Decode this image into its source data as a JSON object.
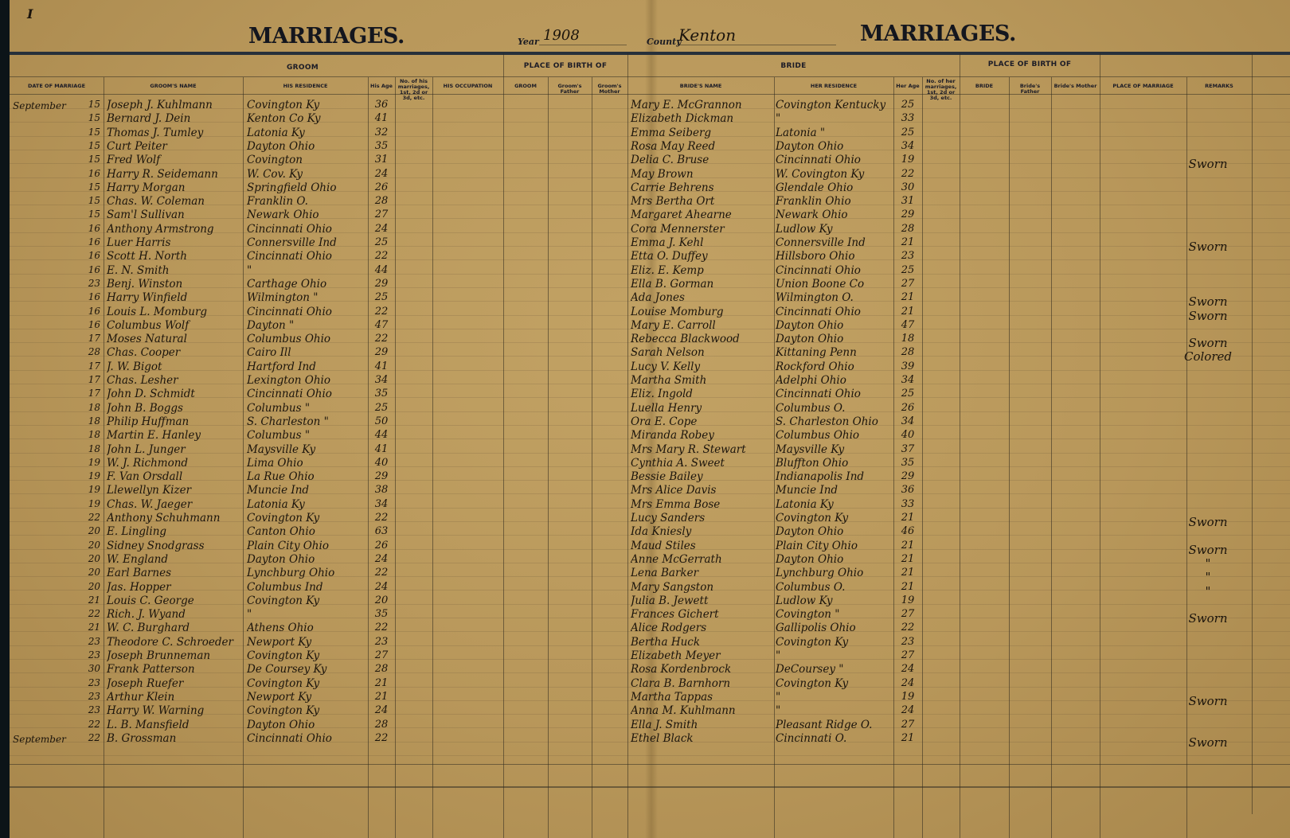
{
  "page_marker": "I",
  "left_title": "MARRIAGES.",
  "right_title": "MARRIAGES.",
  "year_label": "Year",
  "year_value": "1908",
  "county_label": "County",
  "county_value": "Kenton",
  "group_headers": {
    "groom": "GROOM",
    "groom_birth": "PLACE OF BIRTH OF",
    "bride": "BRIDE",
    "bride_birth": "PLACE OF BIRTH OF"
  },
  "columns": [
    "DATE OF MARRIAGE",
    "GROOM'S NAME",
    "HIS RESIDENCE",
    "His Age",
    "No. of his marriages, 1st, 2d or 3d, etc.",
    "HIS OCCUPATION",
    "GROOM",
    "Groom's Father",
    "Groom's Mother",
    "BRIDE'S NAME",
    "HER RESIDENCE",
    "Her Age",
    "No. of her marriages, 1st, 2d or 3d, etc.",
    "BRIDE",
    "Bride's Father",
    "Bride's Mother",
    "PLACE OF MARRIAGE",
    "REMARKS"
  ],
  "rows": [
    {
      "month": "September",
      "day": "15",
      "groom": "Joseph J. Kuhlmann",
      "g_res": "Covington Ky",
      "g_age": "36",
      "bride": "Mary E. McGrannon",
      "b_res": "Covington Kentucky",
      "b_age": "25",
      "remark": ""
    },
    {
      "month": "",
      "day": "15",
      "groom": "Bernard J. Dein",
      "g_res": "Kenton Co Ky",
      "g_age": "41",
      "bride": "Elizabeth Dickman",
      "b_res": "\"",
      "b_age": "33",
      "remark": ""
    },
    {
      "month": "",
      "day": "15",
      "groom": "Thomas J. Tumley",
      "g_res": "Latonia Ky",
      "g_age": "32",
      "bride": "Emma Seiberg",
      "b_res": "Latonia \"",
      "b_age": "25",
      "remark": ""
    },
    {
      "month": "",
      "day": "15",
      "groom": "Curt Peiter",
      "g_res": "Dayton Ohio",
      "g_age": "35",
      "bride": "Rosa May Reed",
      "b_res": "Dayton Ohio",
      "b_age": "34",
      "remark": ""
    },
    {
      "month": "",
      "day": "15",
      "groom": "Fred Wolf",
      "g_res": "Covington",
      "g_age": "31",
      "bride": "Delia C. Bruse",
      "b_res": "Cincinnati Ohio",
      "b_age": "19",
      "remark": "Sworn"
    },
    {
      "month": "",
      "day": "16",
      "groom": "Harry R. Seidemann",
      "g_res": "W. Cov. Ky",
      "g_age": "24",
      "bride": "May Brown",
      "b_res": "W. Covington Ky",
      "b_age": "22",
      "remark": ""
    },
    {
      "month": "",
      "day": "15",
      "groom": "Harry Morgan",
      "g_res": "Springfield Ohio",
      "g_age": "26",
      "bride": "Carrie Behrens",
      "b_res": "Glendale Ohio",
      "b_age": "30",
      "remark": ""
    },
    {
      "month": "",
      "day": "15",
      "groom": "Chas. W. Coleman",
      "g_res": "Franklin O.",
      "g_age": "28",
      "bride": "Mrs Bertha Ort",
      "b_res": "Franklin Ohio",
      "b_age": "31",
      "remark": ""
    },
    {
      "month": "",
      "day": "15",
      "groom": "Sam'l Sullivan",
      "g_res": "Newark Ohio",
      "g_age": "27",
      "bride": "Margaret Ahearne",
      "b_res": "Newark Ohio",
      "b_age": "29",
      "remark": ""
    },
    {
      "month": "",
      "day": "16",
      "groom": "Anthony Armstrong",
      "g_res": "Cincinnati Ohio",
      "g_age": "24",
      "bride": "Cora Mennerster",
      "b_res": "Ludlow Ky",
      "b_age": "28",
      "remark": ""
    },
    {
      "month": "",
      "day": "16",
      "groom": "Luer Harris",
      "g_res": "Connersville Ind",
      "g_age": "25",
      "bride": "Emma J. Kehl",
      "b_res": "Connersville Ind",
      "b_age": "21",
      "remark": "Sworn"
    },
    {
      "month": "",
      "day": "16",
      "groom": "Scott H. North",
      "g_res": "Cincinnati Ohio",
      "g_age": "22",
      "bride": "Etta O. Duffey",
      "b_res": "Hillsboro Ohio",
      "b_age": "23",
      "remark": ""
    },
    {
      "month": "",
      "day": "16",
      "groom": "E. N. Smith",
      "g_res": "\"",
      "g_age": "44",
      "bride": "Eliz. E. Kemp",
      "b_res": "Cincinnati Ohio",
      "b_age": "25",
      "remark": ""
    },
    {
      "month": "",
      "day": "23",
      "groom": "Benj. Winston",
      "g_res": "Carthage Ohio",
      "g_age": "29",
      "bride": "Ella B. Gorman",
      "b_res": "Union Boone Co",
      "b_age": "27",
      "remark": ""
    },
    {
      "month": "",
      "day": "16",
      "groom": "Harry Winfield",
      "g_res": "Wilmington \"",
      "g_age": "25",
      "bride": "Ada Jones",
      "b_res": "Wilmington O.",
      "b_age": "21",
      "remark": "Sworn"
    },
    {
      "month": "",
      "day": "16",
      "groom": "Louis L. Momburg",
      "g_res": "Cincinnati Ohio",
      "g_age": "22",
      "bride": "Louise Momburg",
      "b_res": "Cincinnati Ohio",
      "b_age": "21",
      "remark": "Sworn"
    },
    {
      "month": "",
      "day": "16",
      "groom": "Columbus Wolf",
      "g_res": "Dayton \"",
      "g_age": "47",
      "bride": "Mary E. Carroll",
      "b_res": "Dayton Ohio",
      "b_age": "47",
      "remark": ""
    },
    {
      "month": "",
      "day": "17",
      "groom": "Moses Natural",
      "g_res": "Columbus Ohio",
      "g_age": "22",
      "bride": "Rebecca Blackwood",
      "b_res": "Dayton Ohio",
      "b_age": "18",
      "remark": "Sworn"
    },
    {
      "month": "",
      "day": "28",
      "groom": "Chas. Cooper",
      "g_res": "Cairo Ill",
      "g_age": "29",
      "bride": "Sarah Nelson",
      "b_res": "Kittaning Penn",
      "b_age": "28",
      "remark": "Colored"
    },
    {
      "month": "",
      "day": "17",
      "groom": "J. W. Bigot",
      "g_res": "Hartford Ind",
      "g_age": "41",
      "bride": "Lucy V. Kelly",
      "b_res": "Rockford Ohio",
      "b_age": "39",
      "remark": ""
    },
    {
      "month": "",
      "day": "17",
      "groom": "Chas. Lesher",
      "g_res": "Lexington Ohio",
      "g_age": "34",
      "bride": "Martha Smith",
      "b_res": "Adelphi Ohio",
      "b_age": "34",
      "remark": ""
    },
    {
      "month": "",
      "day": "17",
      "groom": "John D. Schmidt",
      "g_res": "Cincinnati Ohio",
      "g_age": "35",
      "bride": "Eliz. Ingold",
      "b_res": "Cincinnati Ohio",
      "b_age": "25",
      "remark": ""
    },
    {
      "month": "",
      "day": "18",
      "groom": "John B. Boggs",
      "g_res": "Columbus \"",
      "g_age": "25",
      "bride": "Luella Henry",
      "b_res": "Columbus O.",
      "b_age": "26",
      "remark": ""
    },
    {
      "month": "",
      "day": "18",
      "groom": "Philip Huffman",
      "g_res": "S. Charleston \"",
      "g_age": "50",
      "bride": "Ora E. Cope",
      "b_res": "S. Charleston Ohio",
      "b_age": "34",
      "remark": ""
    },
    {
      "month": "",
      "day": "18",
      "groom": "Martin E. Hanley",
      "g_res": "Columbus \"",
      "g_age": "44",
      "bride": "Miranda Robey",
      "b_res": "Columbus Ohio",
      "b_age": "40",
      "remark": ""
    },
    {
      "month": "",
      "day": "18",
      "groom": "John L. Junger",
      "g_res": "Maysville Ky",
      "g_age": "41",
      "bride": "Mrs Mary R. Stewart",
      "b_res": "Maysville Ky",
      "b_age": "37",
      "remark": ""
    },
    {
      "month": "",
      "day": "19",
      "groom": "W. J. Richmond",
      "g_res": "Lima Ohio",
      "g_age": "40",
      "bride": "Cynthia A. Sweet",
      "b_res": "Bluffton Ohio",
      "b_age": "35",
      "remark": ""
    },
    {
      "month": "",
      "day": "19",
      "groom": "F. Van Orsdall",
      "g_res": "La Rue Ohio",
      "g_age": "29",
      "bride": "Bessie Bailey",
      "b_res": "Indianapolis Ind",
      "b_age": "29",
      "remark": ""
    },
    {
      "month": "",
      "day": "19",
      "groom": "Llewellyn Kizer",
      "g_res": "Muncie Ind",
      "g_age": "38",
      "bride": "Mrs Alice Davis",
      "b_res": "Muncie Ind",
      "b_age": "36",
      "remark": ""
    },
    {
      "month": "",
      "day": "19",
      "groom": "Chas. W. Jaeger",
      "g_res": "Latonia Ky",
      "g_age": "34",
      "bride": "Mrs Emma Bose",
      "b_res": "Latonia Ky",
      "b_age": "33",
      "remark": ""
    },
    {
      "month": "",
      "day": "22",
      "groom": "Anthony Schuhmann",
      "g_res": "Covington Ky",
      "g_age": "22",
      "bride": "Lucy Sanders",
      "b_res": "Covington Ky",
      "b_age": "21",
      "remark": "Sworn"
    },
    {
      "month": "",
      "day": "20",
      "groom": "E. Lingling",
      "g_res": "Canton Ohio",
      "g_age": "63",
      "bride": "Ida Kniesly",
      "b_res": "Dayton Ohio",
      "b_age": "46",
      "remark": ""
    },
    {
      "month": "",
      "day": "20",
      "groom": "Sidney Snodgrass",
      "g_res": "Plain City Ohio",
      "g_age": "26",
      "bride": "Maud Stiles",
      "b_res": "Plain City Ohio",
      "b_age": "21",
      "remark": "Sworn"
    },
    {
      "month": "",
      "day": "20",
      "groom": "W. England",
      "g_res": "Dayton Ohio",
      "g_age": "24",
      "bride": "Anne McGerrath",
      "b_res": "Dayton Ohio",
      "b_age": "21",
      "remark": "\""
    },
    {
      "month": "",
      "day": "20",
      "groom": "Earl Barnes",
      "g_res": "Lynchburg Ohio",
      "g_age": "22",
      "bride": "Lena Barker",
      "b_res": "Lynchburg Ohio",
      "b_age": "21",
      "remark": "\""
    },
    {
      "month": "",
      "day": "20",
      "groom": "Jas. Hopper",
      "g_res": "Columbus Ind",
      "g_age": "24",
      "bride": "Mary Sangston",
      "b_res": "Columbus O.",
      "b_age": "21",
      "remark": "\""
    },
    {
      "month": "",
      "day": "21",
      "groom": "Louis C. George",
      "g_res": "Covington Ky",
      "g_age": "20",
      "bride": "Julia B. Jewett",
      "b_res": "Ludlow Ky",
      "b_age": "19",
      "remark": ""
    },
    {
      "month": "",
      "day": "22",
      "groom": "Rich. J. Wyand",
      "g_res": "\"",
      "g_age": "35",
      "bride": "Frances Gichert",
      "b_res": "Covington \"",
      "b_age": "27",
      "remark": "Sworn"
    },
    {
      "month": "",
      "day": "21",
      "groom": "W. C. Burghard",
      "g_res": "Athens Ohio",
      "g_age": "22",
      "bride": "Alice Rodgers",
      "b_res": "Gallipolis Ohio",
      "b_age": "22",
      "remark": ""
    },
    {
      "month": "",
      "day": "23",
      "groom": "Theodore C. Schroeder",
      "g_res": "Newport Ky",
      "g_age": "23",
      "bride": "Bertha Huck",
      "b_res": "Covington Ky",
      "b_age": "23",
      "remark": ""
    },
    {
      "month": "",
      "day": "23",
      "groom": "Joseph Brunneman",
      "g_res": "Covington Ky",
      "g_age": "27",
      "bride": "Elizabeth Meyer",
      "b_res": "\"",
      "b_age": "27",
      "remark": ""
    },
    {
      "month": "",
      "day": "30",
      "groom": "Frank Patterson",
      "g_res": "De Coursey Ky",
      "g_age": "28",
      "bride": "Rosa Kordenbrock",
      "b_res": "DeCoursey \"",
      "b_age": "24",
      "remark": ""
    },
    {
      "month": "",
      "day": "23",
      "groom": "Joseph Ruefer",
      "g_res": "Covington Ky",
      "g_age": "21",
      "bride": "Clara B. Barnhorn",
      "b_res": "Covington Ky",
      "b_age": "24",
      "remark": ""
    },
    {
      "month": "",
      "day": "23",
      "groom": "Arthur Klein",
      "g_res": "Newport Ky",
      "g_age": "21",
      "bride": "Martha Tappas",
      "b_res": "\"",
      "b_age": "19",
      "remark": "Sworn"
    },
    {
      "month": "",
      "day": "23",
      "groom": "Harry W. Warning",
      "g_res": "Covington Ky",
      "g_age": "24",
      "bride": "Anna M. Kuhlmann",
      "b_res": "\"",
      "b_age": "24",
      "remark": ""
    },
    {
      "month": "",
      "day": "22",
      "groom": "L. B. Mansfield",
      "g_res": "Dayton Ohio",
      "g_age": "28",
      "bride": "Ella J. Smith",
      "b_res": "Pleasant Ridge O.",
      "b_age": "27",
      "remark": ""
    },
    {
      "month": "September",
      "day": "22",
      "groom": "B. Grossman",
      "g_res": "Cincinnati Ohio",
      "g_age": "22",
      "bride": "Ethel Black",
      "b_res": "Cincinnati O.",
      "b_age": "21",
      "remark": "Sworn"
    }
  ]
}
